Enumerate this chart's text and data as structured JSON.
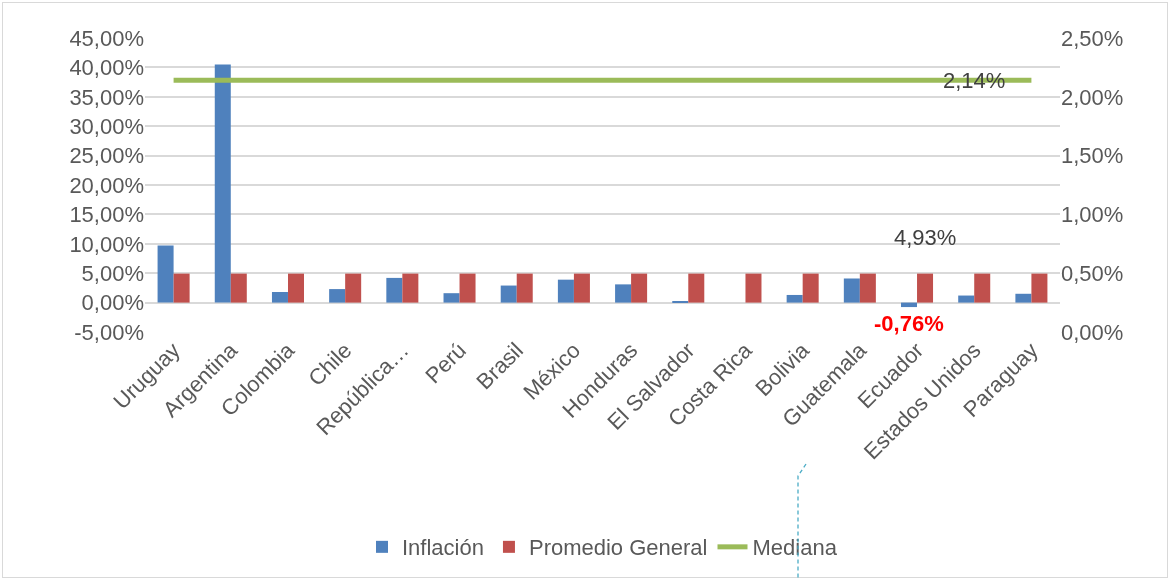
{
  "chart_data": {
    "type": "bar",
    "categories": [
      "Uruguay",
      "Argentina",
      "Colombia",
      "Chile",
      "República…",
      "Perú",
      "Brasil",
      "México",
      "Honduras",
      "El Salvador",
      "Costa Rica",
      "Bolivia",
      "Guatemala",
      "Ecuador",
      "Estados Unidos",
      "Paraguay"
    ],
    "series": [
      {
        "name": "Inflación",
        "color": "#4f81bd",
        "values": [
          9.7,
          40.5,
          1.8,
          2.3,
          4.2,
          1.6,
          2.9,
          3.9,
          3.1,
          0.2,
          0.0,
          1.3,
          4.1,
          -0.76,
          1.2,
          1.5
        ],
        "value_labels": [
          null,
          null,
          null,
          null,
          null,
          null,
          null,
          null,
          null,
          null,
          null,
          null,
          null,
          "-0,76%",
          null,
          null
        ]
      },
      {
        "name": "Promedio General",
        "color": "#c0504d",
        "values": [
          4.93,
          4.93,
          4.93,
          4.93,
          4.93,
          4.93,
          4.93,
          4.93,
          4.93,
          4.93,
          4.93,
          4.93,
          4.93,
          4.93,
          4.93,
          4.93
        ],
        "value_labels": [
          null,
          null,
          null,
          null,
          null,
          null,
          null,
          null,
          null,
          null,
          null,
          null,
          null,
          "4,93%",
          null,
          null
        ]
      },
      {
        "name": "Mediana",
        "type": "line",
        "axis": "y2",
        "color": "#9bbb59",
        "values": [
          2.14,
          2.14,
          2.14,
          2.14,
          2.14,
          2.14,
          2.14,
          2.14,
          2.14,
          2.14,
          2.14,
          2.14,
          2.14,
          2.14,
          2.14,
          2.14
        ],
        "value_labels": [
          null,
          null,
          null,
          null,
          null,
          null,
          null,
          null,
          null,
          null,
          null,
          null,
          null,
          null,
          "2,14%",
          null
        ]
      }
    ],
    "ylim": [
      -5,
      45
    ],
    "yticks": [
      {
        "value": -5,
        "label": "-5,00%"
      },
      {
        "value": 0,
        "label": "0,00%"
      },
      {
        "value": 5,
        "label": "5,00%"
      },
      {
        "value": 10,
        "label": "10,00%"
      },
      {
        "value": 15,
        "label": "15,00%"
      },
      {
        "value": 20,
        "label": "20,00%"
      },
      {
        "value": 25,
        "label": "25,00%"
      },
      {
        "value": 30,
        "label": "30,00%"
      },
      {
        "value": 35,
        "label": "35,00%"
      },
      {
        "value": 40,
        "label": "40,00%"
      },
      {
        "value": 45,
        "label": "45,00%"
      }
    ],
    "y2lim": [
      0,
      2.5
    ],
    "y2ticks": [
      {
        "value": 0,
        "label": "0,00%"
      },
      {
        "value": 0.5,
        "label": "0,50%"
      },
      {
        "value": 1,
        "label": "1,00%"
      },
      {
        "value": 1.5,
        "label": "1,50%"
      },
      {
        "value": 2,
        "label": "2,00%"
      },
      {
        "value": 2.5,
        "label": "2,50%"
      }
    ],
    "grid": "y",
    "legend": "bottom",
    "marker": "none",
    "line_style": "solid"
  }
}
